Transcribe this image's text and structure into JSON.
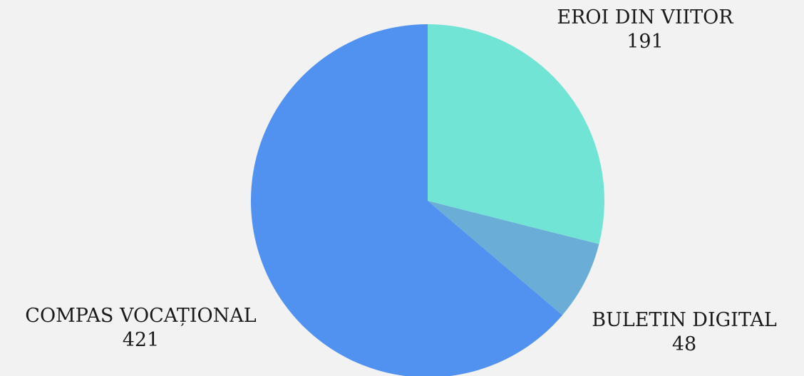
{
  "chart_data": {
    "type": "pie",
    "slices": [
      {
        "label": "EROI DIN VIITOR",
        "value": 191,
        "color": "#72e4d5"
      },
      {
        "label": "BULETIN DIGITAL",
        "value": 48,
        "color": "#6aaed8"
      },
      {
        "label": "COMPAS VOCAȚIONAL",
        "value": 421,
        "color": "#5191f0"
      }
    ],
    "title": "",
    "legend": "none"
  }
}
